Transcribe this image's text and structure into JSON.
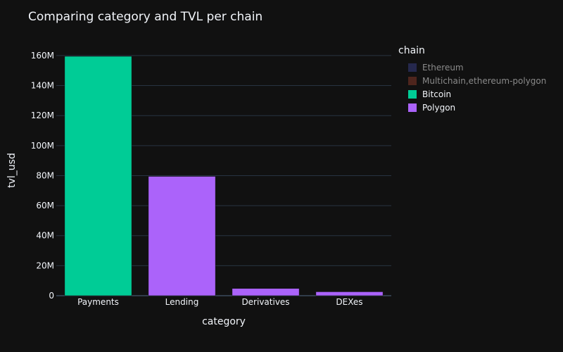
{
  "chart_data": {
    "type": "bar",
    "title": "Comparing category and TVL per chain",
    "xlabel": "category",
    "ylabel": "tvl_usd",
    "categories": [
      "Payments",
      "Lending",
      "Derivatives",
      "DEXes"
    ],
    "ylim": [
      0,
      167000000
    ],
    "yticks": [
      {
        "value": 0,
        "label": "0"
      },
      {
        "value": 20000000,
        "label": "20M"
      },
      {
        "value": 40000000,
        "label": "40M"
      },
      {
        "value": 60000000,
        "label": "60M"
      },
      {
        "value": 80000000,
        "label": "80M"
      },
      {
        "value": 100000000,
        "label": "100M"
      },
      {
        "value": 120000000,
        "label": "120M"
      },
      {
        "value": 140000000,
        "label": "140M"
      },
      {
        "value": 160000000,
        "label": "160M"
      }
    ],
    "grid": true,
    "legend_title": "chain",
    "legend_position": "right",
    "series": [
      {
        "name": "Ethereum",
        "color": "#3a3f8a",
        "visible": false,
        "values": [
          null,
          null,
          null,
          null
        ]
      },
      {
        "name": "Multichain,ethereum-polygon",
        "color": "#8b3a2a",
        "visible": false,
        "values": [
          null,
          null,
          null,
          null
        ]
      },
      {
        "name": "Bitcoin",
        "color": "#00cc96",
        "visible": true,
        "values": [
          159500000,
          null,
          null,
          null
        ]
      },
      {
        "name": "Polygon",
        "color": "#ab63fa",
        "visible": true,
        "values": [
          null,
          79500000,
          4800000,
          2600000
        ]
      }
    ]
  }
}
